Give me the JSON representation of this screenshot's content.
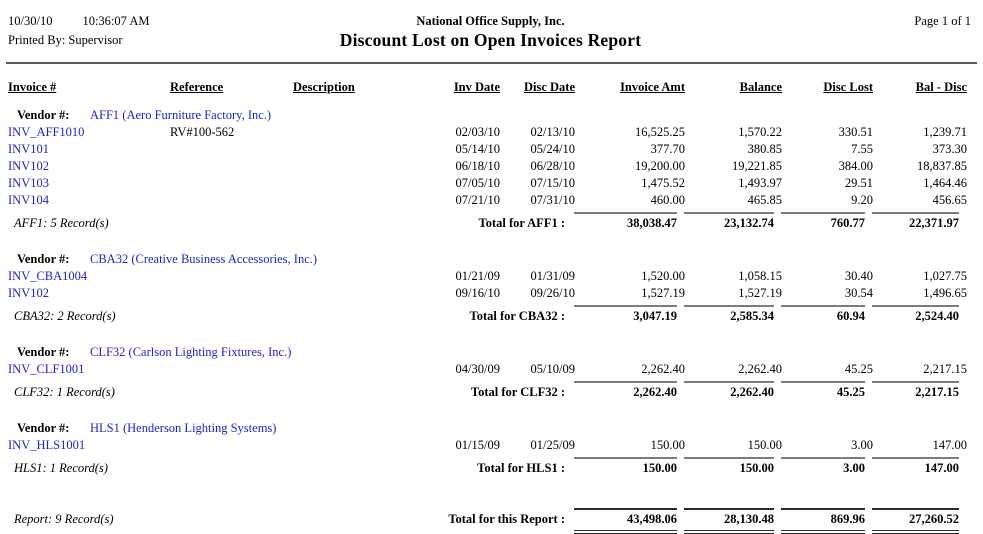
{
  "header": {
    "date": "10/30/10",
    "time": "10:36:07 AM",
    "printed_by": "Printed By: Supervisor",
    "company": "National Office Supply, Inc.",
    "title": "Discount Lost on Open Invoices Report",
    "page": "Page 1 of 1"
  },
  "report": {
    "columns": [
      "Invoice #",
      "Reference",
      "Description",
      "Inv Date",
      "Disc Date",
      "Invoice Amt",
      "Balance",
      "Disc Lost",
      "Bal - Disc"
    ],
    "vendor_label": "Vendor #:",
    "groups": [
      {
        "vendor": "AFF1 (Aero Furniture Factory, Inc.)",
        "rows": [
          {
            "invoice": "INV_AFF1010",
            "reference": "RV#100-562",
            "description": "",
            "inv_date": "02/03/10",
            "disc_date": "02/13/10",
            "invoice_amt": "16,525.25",
            "balance": "1,570.22",
            "disc_lost": "330.51",
            "bal_disc": "1,239.71"
          },
          {
            "invoice": "INV101",
            "reference": "",
            "description": "",
            "inv_date": "05/14/10",
            "disc_date": "05/24/10",
            "invoice_amt": "377.70",
            "balance": "380.85",
            "disc_lost": "7.55",
            "bal_disc": "373.30"
          },
          {
            "invoice": "INV102",
            "reference": "",
            "description": "",
            "inv_date": "06/18/10",
            "disc_date": "06/28/10",
            "invoice_amt": "19,200.00",
            "balance": "19,221.85",
            "disc_lost": "384.00",
            "bal_disc": "18,837.85"
          },
          {
            "invoice": "INV103",
            "reference": "",
            "description": "",
            "inv_date": "07/05/10",
            "disc_date": "07/15/10",
            "invoice_amt": "1,475.52",
            "balance": "1,493.97",
            "disc_lost": "29.51",
            "bal_disc": "1,464.46"
          },
          {
            "invoice": "INV104",
            "reference": "",
            "description": "",
            "inv_date": "07/21/10",
            "disc_date": "07/31/10",
            "invoice_amt": "460.00",
            "balance": "465.85",
            "disc_lost": "9.20",
            "bal_disc": "456.65"
          }
        ],
        "record_note": "AFF1: 5 Record(s)",
        "total_label": "Total for AFF1 :",
        "totals": [
          "38,038.47",
          "23,132.74",
          "760.77",
          "22,371.97"
        ]
      },
      {
        "vendor": "CBA32 (Creative Business Accessories, Inc.)",
        "rows": [
          {
            "invoice": "INV_CBA1004",
            "reference": "",
            "description": "",
            "inv_date": "01/21/09",
            "disc_date": "01/31/09",
            "invoice_amt": "1,520.00",
            "balance": "1,058.15",
            "disc_lost": "30.40",
            "bal_disc": "1,027.75"
          },
          {
            "invoice": "INV102",
            "reference": "",
            "description": "",
            "inv_date": "09/16/10",
            "disc_date": "09/26/10",
            "invoice_amt": "1,527.19",
            "balance": "1,527.19",
            "disc_lost": "30.54",
            "bal_disc": "1,496.65"
          }
        ],
        "record_note": "CBA32: 2 Record(s)",
        "total_label": "Total for CBA32 :",
        "totals": [
          "3,047.19",
          "2,585.34",
          "60.94",
          "2,524.40"
        ]
      },
      {
        "vendor": "CLF32 (Carlson Lighting Fixtures, Inc.)",
        "rows": [
          {
            "invoice": "INV_CLF1001",
            "reference": "",
            "description": "",
            "inv_date": "04/30/09",
            "disc_date": "05/10/09",
            "invoice_amt": "2,262.40",
            "balance": "2,262.40",
            "disc_lost": "45.25",
            "bal_disc": "2,217.15"
          }
        ],
        "record_note": "CLF32: 1 Record(s)",
        "total_label": "Total for CLF32 :",
        "totals": [
          "2,262.40",
          "2,262.40",
          "45.25",
          "2,217.15"
        ]
      },
      {
        "vendor": "HLS1 (Henderson Lighting Systems)",
        "rows": [
          {
            "invoice": "INV_HLS1001",
            "reference": "",
            "description": "",
            "inv_date": "01/15/09",
            "disc_date": "01/25/09",
            "invoice_amt": "150.00",
            "balance": "150.00",
            "disc_lost": "3.00",
            "bal_disc": "147.00"
          }
        ],
        "record_note": "HLS1: 1 Record(s)",
        "total_label": "Total for HLS1 :",
        "totals": [
          "150.00",
          "150.00",
          "3.00",
          "147.00"
        ]
      }
    ],
    "grand_total": {
      "record_note": "Report: 9 Record(s)",
      "label": "Total for this Report :",
      "totals": [
        "43,498.06",
        "28,130.48",
        "869.96",
        "27,260.52"
      ]
    }
  },
  "colors": {
    "link_blue": "#2222cc",
    "total_rule_gray": "#7c7c7c",
    "grand_rule_dark": "#2a2a2a"
  }
}
